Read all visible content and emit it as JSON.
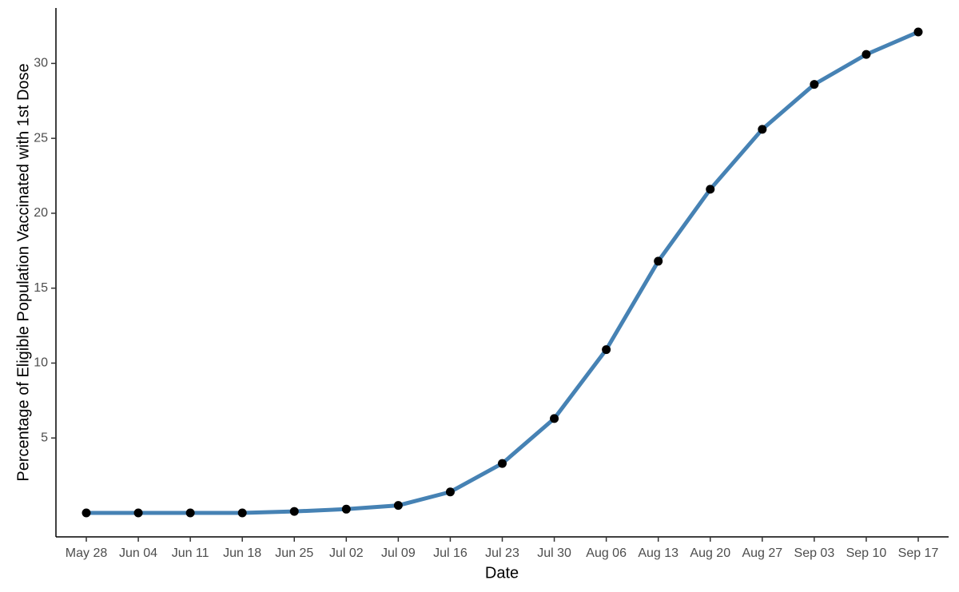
{
  "chart_data": {
    "type": "line",
    "x_label": "Date",
    "y_label": "Percentage of Eligible Population Vaccinated with 1st Dose",
    "categories": [
      "May 28",
      "Jun 04",
      "Jun 11",
      "Jun 18",
      "Jun 25",
      "Jul 02",
      "Jul 09",
      "Jul 16",
      "Jul 23",
      "Jul 30",
      "Aug 06",
      "Aug 13",
      "Aug 20",
      "Aug 27",
      "Sep 03",
      "Sep 10",
      "Sep 17"
    ],
    "values": [
      0.0,
      0.0,
      0.0,
      0.0,
      0.1,
      0.25,
      0.5,
      1.4,
      3.3,
      6.3,
      10.9,
      16.8,
      21.6,
      25.6,
      28.6,
      30.6,
      32.1
    ],
    "color": "#4682b4",
    "marker_color": "#000000",
    "ylim": [
      -1.6,
      33.7
    ],
    "yticks": [
      5,
      10,
      15,
      20,
      25,
      30
    ],
    "grid": false
  }
}
